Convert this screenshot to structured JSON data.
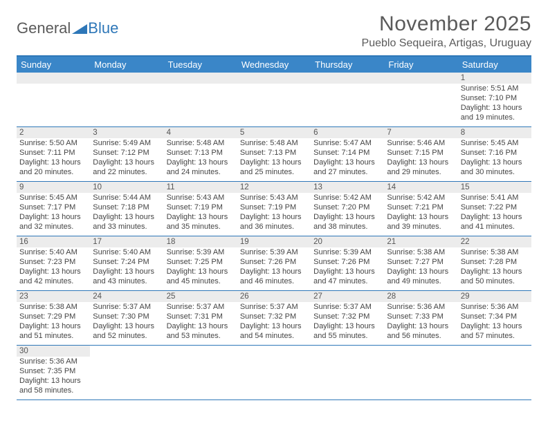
{
  "logo": {
    "text_a": "General",
    "text_b": "Blue",
    "triangle_color": "#2e77b8"
  },
  "title": "November 2025",
  "location": "Pueblo Sequeira, Artigas, Uruguay",
  "colors": {
    "header_bg": "#3a86c8",
    "border": "#2e77b8",
    "daynum_bg": "#ececec",
    "text": "#444444"
  },
  "days_of_week": [
    "Sunday",
    "Monday",
    "Tuesday",
    "Wednesday",
    "Thursday",
    "Friday",
    "Saturday"
  ],
  "first_weekday_index": 6,
  "days": [
    {
      "n": 1,
      "sunrise": "5:51 AM",
      "sunset": "7:10 PM",
      "daylight": "13 hours and 19 minutes."
    },
    {
      "n": 2,
      "sunrise": "5:50 AM",
      "sunset": "7:11 PM",
      "daylight": "13 hours and 20 minutes."
    },
    {
      "n": 3,
      "sunrise": "5:49 AM",
      "sunset": "7:12 PM",
      "daylight": "13 hours and 22 minutes."
    },
    {
      "n": 4,
      "sunrise": "5:48 AM",
      "sunset": "7:13 PM",
      "daylight": "13 hours and 24 minutes."
    },
    {
      "n": 5,
      "sunrise": "5:48 AM",
      "sunset": "7:13 PM",
      "daylight": "13 hours and 25 minutes."
    },
    {
      "n": 6,
      "sunrise": "5:47 AM",
      "sunset": "7:14 PM",
      "daylight": "13 hours and 27 minutes."
    },
    {
      "n": 7,
      "sunrise": "5:46 AM",
      "sunset": "7:15 PM",
      "daylight": "13 hours and 29 minutes."
    },
    {
      "n": 8,
      "sunrise": "5:45 AM",
      "sunset": "7:16 PM",
      "daylight": "13 hours and 30 minutes."
    },
    {
      "n": 9,
      "sunrise": "5:45 AM",
      "sunset": "7:17 PM",
      "daylight": "13 hours and 32 minutes."
    },
    {
      "n": 10,
      "sunrise": "5:44 AM",
      "sunset": "7:18 PM",
      "daylight": "13 hours and 33 minutes."
    },
    {
      "n": 11,
      "sunrise": "5:43 AM",
      "sunset": "7:19 PM",
      "daylight": "13 hours and 35 minutes."
    },
    {
      "n": 12,
      "sunrise": "5:43 AM",
      "sunset": "7:19 PM",
      "daylight": "13 hours and 36 minutes."
    },
    {
      "n": 13,
      "sunrise": "5:42 AM",
      "sunset": "7:20 PM",
      "daylight": "13 hours and 38 minutes."
    },
    {
      "n": 14,
      "sunrise": "5:42 AM",
      "sunset": "7:21 PM",
      "daylight": "13 hours and 39 minutes."
    },
    {
      "n": 15,
      "sunrise": "5:41 AM",
      "sunset": "7:22 PM",
      "daylight": "13 hours and 41 minutes."
    },
    {
      "n": 16,
      "sunrise": "5:40 AM",
      "sunset": "7:23 PM",
      "daylight": "13 hours and 42 minutes."
    },
    {
      "n": 17,
      "sunrise": "5:40 AM",
      "sunset": "7:24 PM",
      "daylight": "13 hours and 43 minutes."
    },
    {
      "n": 18,
      "sunrise": "5:39 AM",
      "sunset": "7:25 PM",
      "daylight": "13 hours and 45 minutes."
    },
    {
      "n": 19,
      "sunrise": "5:39 AM",
      "sunset": "7:26 PM",
      "daylight": "13 hours and 46 minutes."
    },
    {
      "n": 20,
      "sunrise": "5:39 AM",
      "sunset": "7:26 PM",
      "daylight": "13 hours and 47 minutes."
    },
    {
      "n": 21,
      "sunrise": "5:38 AM",
      "sunset": "7:27 PM",
      "daylight": "13 hours and 49 minutes."
    },
    {
      "n": 22,
      "sunrise": "5:38 AM",
      "sunset": "7:28 PM",
      "daylight": "13 hours and 50 minutes."
    },
    {
      "n": 23,
      "sunrise": "5:38 AM",
      "sunset": "7:29 PM",
      "daylight": "13 hours and 51 minutes."
    },
    {
      "n": 24,
      "sunrise": "5:37 AM",
      "sunset": "7:30 PM",
      "daylight": "13 hours and 52 minutes."
    },
    {
      "n": 25,
      "sunrise": "5:37 AM",
      "sunset": "7:31 PM",
      "daylight": "13 hours and 53 minutes."
    },
    {
      "n": 26,
      "sunrise": "5:37 AM",
      "sunset": "7:32 PM",
      "daylight": "13 hours and 54 minutes."
    },
    {
      "n": 27,
      "sunrise": "5:37 AM",
      "sunset": "7:32 PM",
      "daylight": "13 hours and 55 minutes."
    },
    {
      "n": 28,
      "sunrise": "5:36 AM",
      "sunset": "7:33 PM",
      "daylight": "13 hours and 56 minutes."
    },
    {
      "n": 29,
      "sunrise": "5:36 AM",
      "sunset": "7:34 PM",
      "daylight": "13 hours and 57 minutes."
    },
    {
      "n": 30,
      "sunrise": "5:36 AM",
      "sunset": "7:35 PM",
      "daylight": "13 hours and 58 minutes."
    }
  ],
  "labels": {
    "sunrise": "Sunrise:",
    "sunset": "Sunset:",
    "daylight": "Daylight:"
  }
}
